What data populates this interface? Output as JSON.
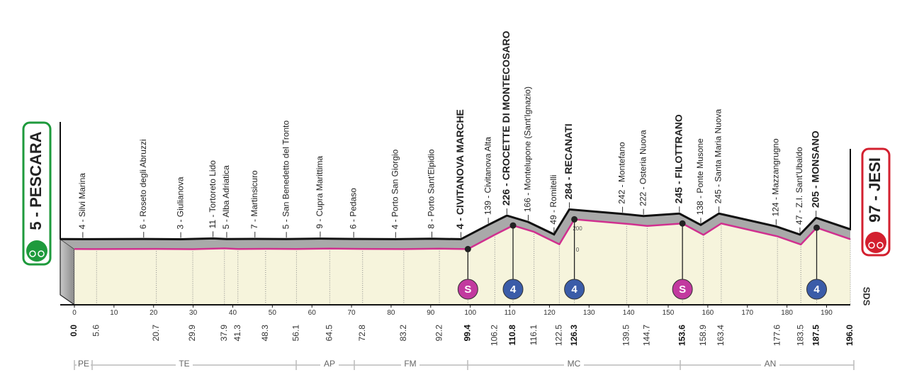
{
  "start": {
    "label": "5 - PESCARA",
    "alt": 5
  },
  "finish": {
    "label": "97 - JESI",
    "alt": 97
  },
  "distance_range": [
    0,
    196
  ],
  "waypoints": [
    {
      "label": "4 - Silvi Marina",
      "alt": 4,
      "km": 5.6,
      "bold": false
    },
    {
      "label": "6 - Roseto degli Abruzzi",
      "alt": 6,
      "km": 20.7,
      "bold": false
    },
    {
      "label": "3 - Giulianova",
      "alt": 3,
      "km": 29.9,
      "bold": false
    },
    {
      "label": "11 - Tortoreto Lido",
      "alt": 11,
      "km": 37.9,
      "bold": false
    },
    {
      "label": "5 - Alba Adriatica",
      "alt": 5,
      "km": 41.3,
      "bold": false
    },
    {
      "label": "7 - Martinsicuro",
      "alt": 7,
      "km": 48.3,
      "bold": false
    },
    {
      "label": "5 - San Benedetto del Tronto",
      "alt": 5,
      "km": 56.1,
      "bold": false
    },
    {
      "label": "9 - Cupra Marittima",
      "alt": 9,
      "km": 64.5,
      "bold": false
    },
    {
      "label": "6 - Pedaso",
      "alt": 6,
      "km": 72.8,
      "bold": false
    },
    {
      "label": "4 - Porto San Giorgio",
      "alt": 4,
      "km": 83.2,
      "bold": false
    },
    {
      "label": "8 - Porto Sant'Elpidio",
      "alt": 8,
      "km": 92.2,
      "bold": false
    },
    {
      "label": "4 - CIVITANOVA MARCHE",
      "alt": 4,
      "km": 99.4,
      "bold": true
    },
    {
      "label": "139 - Civitanova Alta",
      "alt": 139,
      "km": 106.2,
      "bold": false
    },
    {
      "label": "226 - CROCETTE DI MONTECOSARO",
      "alt": 226,
      "km": 110.8,
      "bold": true
    },
    {
      "label": "166 - Montelupone (Sant'Ignazio)",
      "alt": 166,
      "km": 116.1,
      "bold": false
    },
    {
      "label": "49 - Romitelli",
      "alt": 49,
      "km": 122.5,
      "bold": false
    },
    {
      "label": "284 - RECANATI",
      "alt": 284,
      "km": 126.3,
      "bold": true
    },
    {
      "label": "242 - Montefano",
      "alt": 242,
      "km": 139.5,
      "bold": false
    },
    {
      "label": "222 - Osteria Nuova",
      "alt": 222,
      "km": 144.7,
      "bold": false
    },
    {
      "label": "245 - FILOTTRANO",
      "alt": 245,
      "km": 153.6,
      "bold": true
    },
    {
      "label": "138 - Ponte Musone",
      "alt": 138,
      "km": 158.9,
      "bold": false
    },
    {
      "label": "245 - Santa Maria Nuova",
      "alt": 245,
      "km": 163.4,
      "bold": false
    },
    {
      "label": "124 - Mazzangrugno",
      "alt": 124,
      "km": 177.6,
      "bold": false
    },
    {
      "label": "47 - Z.I. Sant'Ubaldo",
      "alt": 47,
      "km": 183.5,
      "bold": false
    },
    {
      "label": "205 - MONSANO",
      "alt": 205,
      "km": 187.5,
      "bold": true
    }
  ],
  "km_ticks": [
    0,
    10,
    20,
    30,
    40,
    50,
    60,
    70,
    80,
    90,
    100,
    110,
    120,
    130,
    140,
    150,
    160,
    170,
    180,
    190
  ],
  "alt_ticks": [
    200,
    0
  ],
  "distances": [
    {
      "km": 0,
      "label": "0.0",
      "bold": true
    },
    {
      "km": 5.6,
      "label": "5.6",
      "bold": false
    },
    {
      "km": 20.7,
      "label": "20.7",
      "bold": false
    },
    {
      "km": 29.9,
      "label": "29.9",
      "bold": false
    },
    {
      "km": 37.9,
      "label": "37.9",
      "bold": false
    },
    {
      "km": 41.3,
      "label": "41.3",
      "bold": false
    },
    {
      "km": 48.3,
      "label": "48.3",
      "bold": false
    },
    {
      "km": 56.1,
      "label": "56.1",
      "bold": false
    },
    {
      "km": 64.5,
      "label": "64.5",
      "bold": false
    },
    {
      "km": 72.8,
      "label": "72.8",
      "bold": false
    },
    {
      "km": 83.2,
      "label": "83.2",
      "bold": false
    },
    {
      "km": 92.2,
      "label": "92.2",
      "bold": false
    },
    {
      "km": 99.4,
      "label": "99.4",
      "bold": true
    },
    {
      "km": 106.2,
      "label": "106.2",
      "bold": false
    },
    {
      "km": 110.8,
      "label": "110.8",
      "bold": true
    },
    {
      "km": 116.1,
      "label": "116.1",
      "bold": false
    },
    {
      "km": 122.5,
      "label": "122.5",
      "bold": false
    },
    {
      "km": 126.3,
      "label": "126.3",
      "bold": true
    },
    {
      "km": 139.5,
      "label": "139.5",
      "bold": false
    },
    {
      "km": 144.7,
      "label": "144.7",
      "bold": false
    },
    {
      "km": 153.6,
      "label": "153.6",
      "bold": true
    },
    {
      "km": 158.9,
      "label": "158.9",
      "bold": false
    },
    {
      "km": 163.4,
      "label": "163.4",
      "bold": false
    },
    {
      "km": 177.6,
      "label": "177.6",
      "bold": false
    },
    {
      "km": 183.5,
      "label": "183.5",
      "bold": false
    },
    {
      "km": 187.5,
      "label": "187.5",
      "bold": true
    },
    {
      "km": 196,
      "label": "196.0",
      "bold": true
    }
  ],
  "markers": [
    {
      "km": 99.4,
      "type": "sprint",
      "label": "S",
      "color": "#c2399f"
    },
    {
      "km": 110.8,
      "type": "climb",
      "label": "4",
      "color": "#3b5ca8"
    },
    {
      "km": 126.3,
      "type": "climb",
      "label": "4",
      "color": "#3b5ca8"
    },
    {
      "km": 153.6,
      "type": "sprint",
      "label": "S",
      "color": "#c2399f"
    },
    {
      "km": 187.5,
      "type": "climb",
      "label": "4",
      "color": "#3b5ca8"
    }
  ],
  "provinces": [
    "PE",
    "TE",
    "AP",
    "FM",
    "MC",
    "AN"
  ],
  "logo": "SDS"
}
